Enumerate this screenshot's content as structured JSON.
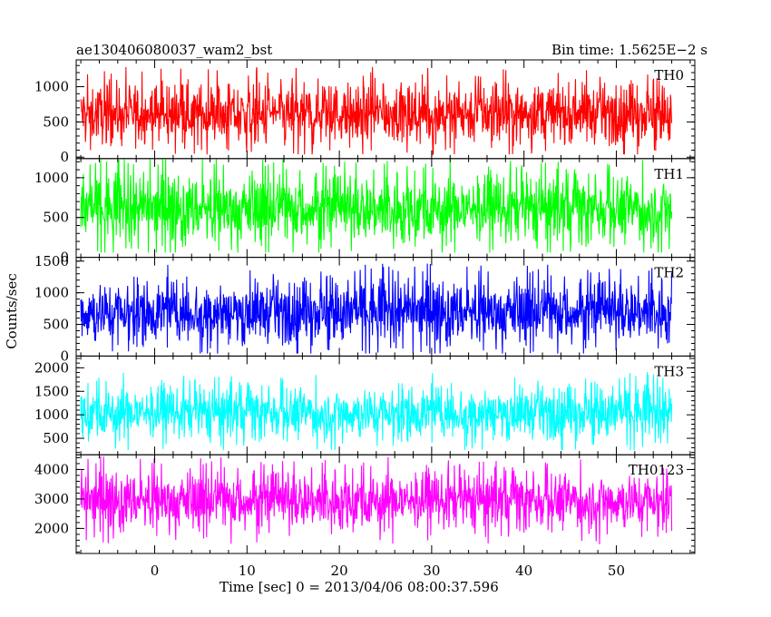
{
  "header": {
    "title_left": "ae130406080037_wam2_bst",
    "title_right": "Bin time: 1.5625E−2 s"
  },
  "chart_data": {
    "type": "line",
    "x": {
      "label": "Time [sec] 0 = 2013/04/06 08:00:37.596",
      "range": [
        -8.5,
        58.5
      ],
      "data_range": [
        -8.0,
        56.0
      ],
      "ticks": [
        0,
        10,
        20,
        30,
        40,
        50
      ],
      "minor_step": 2
    },
    "ylabel": "Counts/sec",
    "panels": [
      {
        "name": "TH0",
        "color": "#ff0000",
        "ylim": [
          -20,
          1380
        ],
        "yticks": [
          0,
          500,
          1000
        ],
        "minor_step": 100,
        "mean": 620,
        "spread": 330,
        "min": 40,
        "max": 1340
      },
      {
        "name": "TH1",
        "color": "#00ff00",
        "ylim": [
          0,
          1240
        ],
        "yticks": [
          0,
          500,
          1000
        ],
        "minor_step": 100,
        "mean": 610,
        "spread": 330,
        "min": 60,
        "max": 1240
      },
      {
        "name": "TH2",
        "color": "#0000ff",
        "ylim": [
          0,
          1560
        ],
        "yticks": [
          0,
          500,
          1000,
          1500
        ],
        "minor_step": 100,
        "mean": 700,
        "spread": 380,
        "min": 40,
        "max": 1560
      },
      {
        "name": "TH3",
        "color": "#00ffff",
        "ylim": [
          150,
          2250
        ],
        "yticks": [
          500,
          1000,
          1500,
          2000
        ],
        "minor_step": 100,
        "mean": 1050,
        "spread": 430,
        "min": 250,
        "max": 2200
      },
      {
        "name": "TH0123",
        "color": "#ff00ff",
        "ylim": [
          1150,
          4500
        ],
        "yticks": [
          2000,
          3000,
          4000
        ],
        "minor_step": 200,
        "mean": 2950,
        "spread": 750,
        "min": 1150,
        "max": 4500
      }
    ]
  }
}
